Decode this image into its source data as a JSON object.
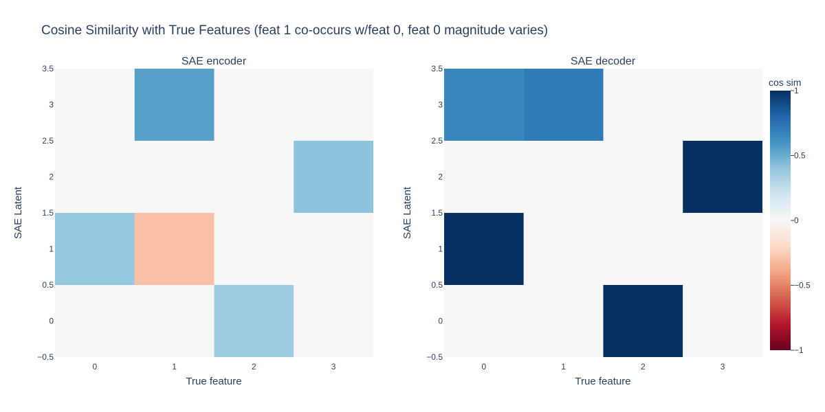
{
  "title": "Cosine Similarity with True Features (feat 1 co-occurs w/feat 0, feat 0 magnitude varies)",
  "chart_data": [
    {
      "type": "heatmap",
      "title": "SAE encoder",
      "xlabel": "True feature",
      "ylabel": "SAE Latent",
      "x": [
        0,
        1,
        2,
        3
      ],
      "y": [
        0,
        1,
        2,
        3
      ],
      "x_tick_labels": [
        "0",
        "1",
        "2",
        "3"
      ],
      "y_tick_labels": [
        "−0.5",
        "0",
        "0.5",
        "1",
        "1.5",
        "2",
        "2.5",
        "3",
        "3.5"
      ],
      "z": [
        [
          0.0,
          0.0,
          0.36,
          0.0
        ],
        [
          0.39,
          -0.3,
          0.0,
          0.0
        ],
        [
          0.0,
          0.0,
          0.0,
          0.41
        ],
        [
          0.0,
          0.55,
          0.0,
          0.0
        ]
      ],
      "xlim": [
        -0.5,
        3.5
      ],
      "ylim": [
        -0.5,
        3.5
      ]
    },
    {
      "type": "heatmap",
      "title": "SAE decoder",
      "xlabel": "True feature",
      "ylabel": "SAE Latent",
      "x": [
        0,
        1,
        2,
        3
      ],
      "y": [
        0,
        1,
        2,
        3
      ],
      "x_tick_labels": [
        "0",
        "1",
        "2",
        "3"
      ],
      "y_tick_labels": [
        "−0.5",
        "0",
        "0.5",
        "1",
        "1.5",
        "2",
        "2.5",
        "3",
        "3.5"
      ],
      "z": [
        [
          0.0,
          0.0,
          1.0,
          0.0
        ],
        [
          1.0,
          0.0,
          0.0,
          0.0
        ],
        [
          0.0,
          0.0,
          0.0,
          1.0
        ],
        [
          0.66,
          0.71,
          0.0,
          0.0
        ]
      ],
      "xlim": [
        -0.5,
        3.5
      ],
      "ylim": [
        -0.5,
        3.5
      ]
    }
  ],
  "colorbar": {
    "title": "cos sim",
    "colorscale": "RdBu",
    "range": [
      -1,
      1
    ],
    "ticks": [
      1,
      0.5,
      0,
      -0.5,
      -1
    ],
    "tick_labels": [
      "1",
      "0.5",
      "0",
      "−0.5",
      "−1"
    ]
  }
}
